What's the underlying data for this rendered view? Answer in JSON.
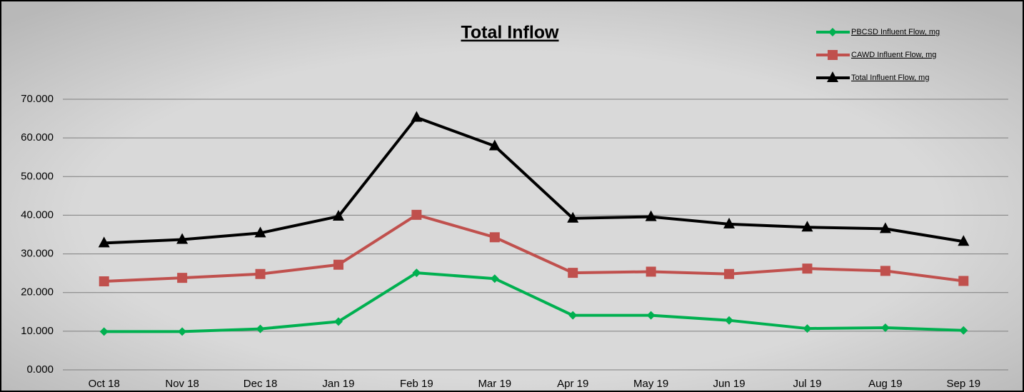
{
  "chart_data": {
    "type": "line",
    "title": "Total Inflow",
    "categories": [
      "Oct 18",
      "Nov 18",
      "Dec 18",
      "Jan 19",
      "Feb 19",
      "Mar 19",
      "Apr 19",
      "May 19",
      "Jun 19",
      "Jul 19",
      "Aug 19",
      "Sep 19"
    ],
    "series": [
      {
        "name": "PBCSD Influent Flow, mg",
        "color": "#00b050",
        "marker": "diamond",
        "values": [
          9.9,
          9.9,
          10.6,
          12.5,
          25.1,
          23.6,
          14.1,
          14.1,
          12.8,
          10.7,
          10.9,
          10.2
        ]
      },
      {
        "name": "CAWD Influent Flow, mg",
        "color": "#c0504d",
        "marker": "square",
        "values": [
          22.9,
          23.8,
          24.8,
          27.2,
          40.1,
          34.3,
          25.1,
          25.4,
          24.8,
          26.2,
          25.6,
          23.0
        ]
      },
      {
        "name": "Total Influent Flow, mg",
        "color": "#000000",
        "marker": "triangle",
        "values": [
          32.8,
          33.7,
          35.4,
          39.7,
          65.3,
          57.9,
          39.2,
          39.6,
          37.7,
          36.9,
          36.5,
          33.2
        ]
      }
    ],
    "ylim": [
      0,
      70
    ],
    "yticks": [
      {
        "value": 0,
        "label": "0.000"
      },
      {
        "value": 10,
        "label": "10.000"
      },
      {
        "value": 20,
        "label": "20.000"
      },
      {
        "value": 30,
        "label": "30.000"
      },
      {
        "value": 40,
        "label": "40.000"
      },
      {
        "value": 50,
        "label": "50.000"
      },
      {
        "value": 60,
        "label": "60.000"
      },
      {
        "value": 70,
        "label": "70.000"
      }
    ],
    "grid": true,
    "legend": "top-right"
  }
}
